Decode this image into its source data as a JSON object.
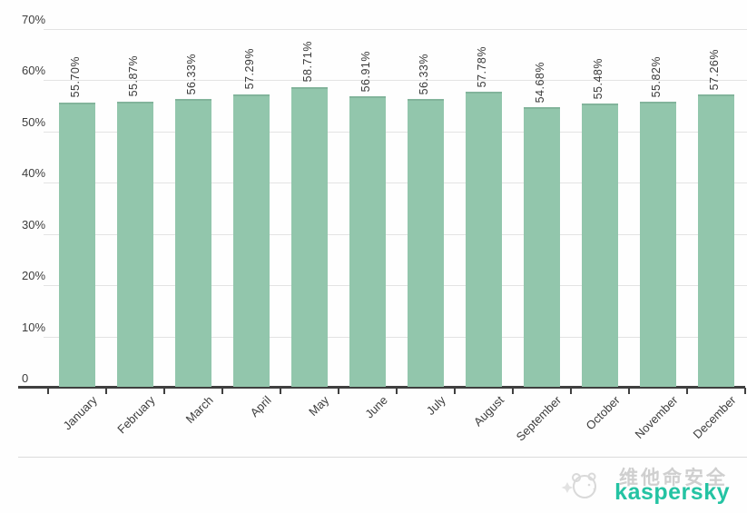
{
  "chart_data": {
    "type": "bar",
    "title": "",
    "xlabel": "",
    "ylabel": "",
    "categories": [
      "January",
      "February",
      "March",
      "April",
      "May",
      "June",
      "July",
      "August",
      "September",
      "October",
      "November",
      "December"
    ],
    "values": [
      55.7,
      55.87,
      56.33,
      57.29,
      58.71,
      56.91,
      56.33,
      57.78,
      54.68,
      55.48,
      55.82,
      57.26
    ],
    "value_labels": [
      "55.70%",
      "55.87%",
      "56.33%",
      "57.29%",
      "58.71%",
      "56.91%",
      "56.33%",
      "57.78%",
      "54.68%",
      "55.48%",
      "55.82%",
      "57.26%"
    ],
    "y_ticks": [
      {
        "value": 70,
        "label": "70%"
      },
      {
        "value": 60,
        "label": "60%"
      },
      {
        "value": 50,
        "label": "50%"
      },
      {
        "value": 40,
        "label": "40%"
      },
      {
        "value": 30,
        "label": "30%"
      },
      {
        "value": 20,
        "label": "20%"
      },
      {
        "value": 10,
        "label": "10%"
      },
      {
        "value": 0,
        "label": "0"
      }
    ],
    "ylim": [
      0,
      70
    ],
    "grid": true,
    "legend_position": "none",
    "bar_color": "#92c6ac",
    "bar_top_edge_color": "#82b49b",
    "axis_color": "#3f3f3f",
    "gridline_color": "#e3e3e3",
    "label_color": "#3d3d3d"
  },
  "footer": {
    "watermark_cn": "维他命安全",
    "brand": "kaspersky",
    "brand_color": "#24c3a3",
    "mascot_icon": "panda-mascot-watermark-icon"
  }
}
